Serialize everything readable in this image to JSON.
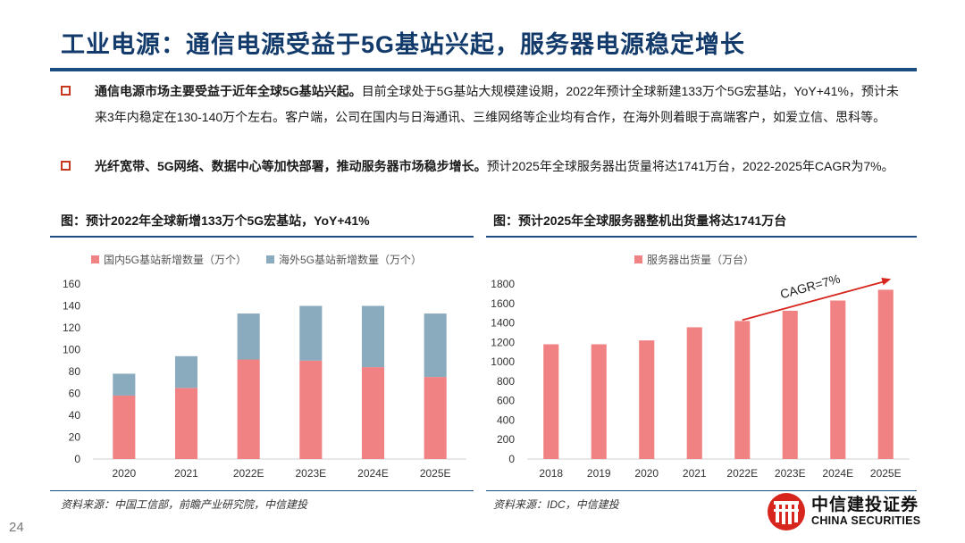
{
  "title": "工业电源：通信电源受益于5G基站兴起，服务器电源稳定增长",
  "bullets": [
    {
      "lead": "通信电源市场主要受益于近年全球5G基站兴起。",
      "text": "目前全球处于5G基站大规模建设期，2022年预计全球新建133万个5G宏基站，YoY+41%，预计未来3年内稳定在130-140万个左右。客户端，公司在国内与日海通讯、三维网络等企业均有合作，在海外则着眼于高端客户，如爱立信、思科等。"
    },
    {
      "lead": "光纤宽带、5G网络、数据中心等加快部署，推动服务器市场稳步增长。",
      "text": "预计2025年全球服务器出货量将达1741万台，2022-2025年CAGR为7%。"
    }
  ],
  "figures": {
    "left": {
      "title": "图：预计2022年全球新增133万个5G宏基站，YoY+41%",
      "source": "资料来源：中国工信部，前瞻产业研究院，中信建投"
    },
    "right": {
      "title": "图：预计2025年全球服务器整机出货量将达1741万台",
      "source": "资料来源：IDC，中信建投"
    }
  },
  "colors": {
    "domestic": "#f08283",
    "overseas": "#8aaabd",
    "server": "#f08283",
    "arrow": "#d7261e",
    "accent": "#1b4d80"
  },
  "chart_data": [
    {
      "type": "bar",
      "stacked": true,
      "categories": [
        "2020",
        "2021",
        "2022E",
        "2023E",
        "2024E",
        "2025E"
      ],
      "series": [
        {
          "name": "国内5G基站新增数量（万个）",
          "values": [
            58,
            65,
            91,
            90,
            84,
            75
          ]
        },
        {
          "name": "海外5G基站新增数量（万个）",
          "values": [
            20,
            29,
            42,
            50,
            56,
            58
          ]
        }
      ],
      "ylim": [
        0,
        160
      ],
      "yticks": [
        0,
        20,
        40,
        60,
        80,
        100,
        120,
        140,
        160
      ],
      "legend": "top-center",
      "grid": false
    },
    {
      "type": "bar",
      "categories": [
        "2018",
        "2019",
        "2020",
        "2021",
        "2022E",
        "2023E",
        "2024E",
        "2025E"
      ],
      "series": [
        {
          "name": "服务器出货量（万台）",
          "values": [
            1180,
            1180,
            1220,
            1355,
            1420,
            1525,
            1630,
            1741
          ]
        }
      ],
      "ylim": [
        0,
        1800
      ],
      "yticks": [
        0,
        200,
        400,
        600,
        800,
        1000,
        1200,
        1400,
        1600,
        1800
      ],
      "annotation": "CAGR=7%",
      "legend": "top-center",
      "grid": false
    }
  ],
  "page_number": "24",
  "logo": {
    "cn": "中信建投证券",
    "en": "CHINA SECURITIES"
  }
}
